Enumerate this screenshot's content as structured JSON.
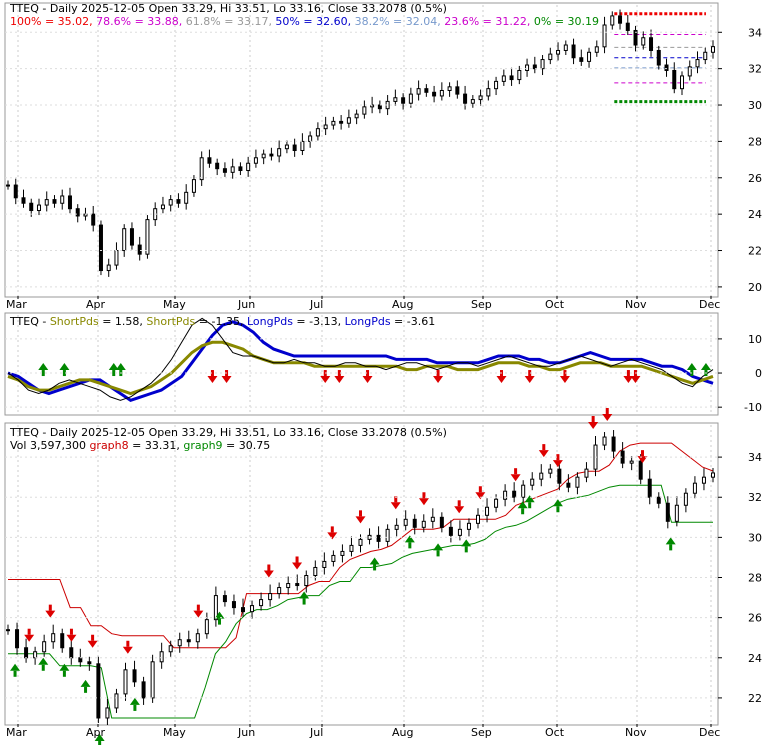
{
  "chart_data": [
    {
      "type": "candlestick",
      "panel": "price-fibonacci",
      "header": {
        "title": "TTEQ - Daily 2025-12-05 Open 33.29, Hi 33.51, Lo 33.16, Close 33.2078 (0.5%)",
        "fib": [
          {
            "text": "100% = 35.02,",
            "color": "#ee0000",
            "value": 35.02
          },
          {
            "text": "78.6% = 33.88,",
            "color": "#cc00cc",
            "value": 33.88
          },
          {
            "text": "61.8% = 33.17,",
            "color": "#999999",
            "value": 33.17
          },
          {
            "text": "50% = 32.60,",
            "color": "#0000cc",
            "value": 32.6
          },
          {
            "text": "38.2% = 32.04,",
            "color": "#7799cc",
            "value": 32.04
          },
          {
            "text": "23.6% = 31.22,",
            "color": "#cc00cc",
            "value": 31.22
          },
          {
            "text": "0% = 30.19",
            "color": "#008800",
            "value": 30.19
          }
        ]
      },
      "ylim": [
        19.5,
        35.5
      ],
      "y_ticks": [
        20,
        22,
        24,
        26,
        28,
        30,
        32,
        34
      ],
      "x_ticks": [
        "Mar",
        "Apr",
        "May",
        "Jun",
        "Jul",
        "Aug",
        "Sep",
        "Oct",
        "Nov",
        "Dec"
      ],
      "closes": [
        25.6,
        24.9,
        24.6,
        24.2,
        24.5,
        24.8,
        24.6,
        25.0,
        24.3,
        23.9,
        24.0,
        23.4,
        20.9,
        21.2,
        22.0,
        23.2,
        22.3,
        21.8,
        23.7,
        24.3,
        24.5,
        24.8,
        24.6,
        25.2,
        25.9,
        27.1,
        26.8,
        26.5,
        26.3,
        26.6,
        26.4,
        26.8,
        27.1,
        27.3,
        27.2,
        27.6,
        27.8,
        27.5,
        28.0,
        28.3,
        28.7,
        28.9,
        29.1,
        29.0,
        29.3,
        29.5,
        29.9,
        30.0,
        29.8,
        30.2,
        30.4,
        30.1,
        30.6,
        30.9,
        30.7,
        30.5,
        30.8,
        31.0,
        30.6,
        30.1,
        30.3,
        30.5,
        30.9,
        31.3,
        31.6,
        31.4,
        31.9,
        32.2,
        32.0,
        32.5,
        32.8,
        33.0,
        33.3,
        32.6,
        32.4,
        32.9,
        33.2,
        34.4,
        34.9,
        34.5,
        34.1,
        33.3,
        33.7,
        33.0,
        32.2,
        31.9,
        30.9,
        31.6,
        32.1,
        32.5,
        32.9,
        33.21
      ],
      "fib_extent": {
        "start_frac": 0.86,
        "end_frac": 0.99
      }
    },
    {
      "type": "line",
      "panel": "oscillator",
      "header": [
        {
          "text": "TTEQ - ",
          "color": "#000000"
        },
        {
          "text": "ShortPds",
          "color": "#888800"
        },
        {
          "text": " = 1.58, ",
          "color": "#000000"
        },
        {
          "text": "ShortPds",
          "color": "#888800"
        },
        {
          "text": " = -1.35, ",
          "color": "#000000"
        },
        {
          "text": "LongPds",
          "color": "#0000cc"
        },
        {
          "text": " = -3.13, ",
          "color": "#000000"
        },
        {
          "text": "LongPds",
          "color": "#0000cc"
        },
        {
          "text": " = -3.61",
          "color": "#000000"
        }
      ],
      "ylim": [
        -12,
        17
      ],
      "y_ticks": [
        -10,
        0,
        10
      ],
      "series": [
        {
          "color": "#0000cc",
          "values": [
            0,
            -1,
            -3,
            -5,
            -6,
            -5,
            -4,
            -3,
            -2,
            -2,
            -4,
            -6,
            -8,
            -7,
            -6,
            -5,
            -3,
            -1,
            3,
            7,
            11,
            14,
            15,
            14,
            12,
            9,
            7,
            6,
            5,
            5,
            5,
            5,
            5,
            5,
            5,
            5,
            5,
            5,
            4,
            4,
            4,
            4,
            3,
            3,
            3,
            3,
            3,
            4,
            5,
            5,
            5,
            4,
            4,
            3,
            3,
            4,
            5,
            6,
            5,
            4,
            4,
            4,
            4,
            3,
            2,
            2,
            1,
            -1,
            -2,
            -3
          ]
        },
        {
          "color": "#888800",
          "values": [
            -1,
            -2,
            -4,
            -5,
            -5,
            -4,
            -3,
            -2,
            -2,
            -3,
            -4,
            -5,
            -6,
            -5,
            -4,
            -2,
            0,
            3,
            6,
            8,
            9,
            9,
            8,
            7,
            5,
            4,
            3,
            3,
            3,
            3,
            2,
            2,
            2,
            2,
            2,
            2,
            2,
            2,
            2,
            1,
            1,
            2,
            2,
            2,
            1,
            1,
            1,
            2,
            3,
            3,
            3,
            2,
            2,
            1,
            1,
            2,
            3,
            3,
            3,
            2,
            2,
            2,
            2,
            1,
            0,
            -1,
            -2,
            -3,
            -2,
            -1
          ]
        },
        {
          "color": "#000000",
          "values": [
            0,
            -2,
            -5,
            -6,
            -5,
            -3,
            -2,
            -3,
            -4,
            -5,
            -7,
            -8,
            -7,
            -5,
            -3,
            0,
            4,
            9,
            14,
            16,
            14,
            10,
            6,
            5,
            5,
            4,
            3,
            3,
            4,
            3,
            3,
            2,
            2,
            3,
            3,
            2,
            2,
            1,
            2,
            3,
            3,
            2,
            1,
            2,
            3,
            3,
            2,
            3,
            4,
            5,
            4,
            3,
            2,
            2,
            3,
            4,
            5,
            4,
            3,
            2,
            3,
            4,
            3,
            2,
            1,
            -1,
            -3,
            -4,
            -1,
            1
          ]
        }
      ],
      "arrows_up_frac": [
        0.05,
        0.08,
        0.15,
        0.16,
        0.97,
        0.99
      ],
      "arrows_down_frac": [
        0.29,
        0.31,
        0.45,
        0.47,
        0.51,
        0.61,
        0.7,
        0.74,
        0.79,
        0.88,
        0.89
      ]
    },
    {
      "type": "candlestick",
      "panel": "price-stops",
      "header": {
        "title": "TTEQ - Daily 2025-12-05 Open 33.29, Hi 33.51, Lo 33.16, Close 33.2078 (0.5%)",
        "vol_text": "Vol 3,597,300",
        "g8_label": "graph8",
        "g8_text": " = 33.31,",
        "g8_color": "#cc0000",
        "g9_label": "graph9",
        "g9_text": " = 30.75",
        "g9_color": "#008800"
      },
      "ylim": [
        20.7,
        35.6
      ],
      "y_ticks": [
        22,
        24,
        26,
        28,
        30,
        32,
        34
      ],
      "x_ticks": [
        "Mar",
        "Apr",
        "May",
        "Jun",
        "Jul",
        "Aug",
        "Sep",
        "Oct",
        "Nov",
        "Dec"
      ],
      "upper_stop": [
        27.9,
        27.9,
        27.9,
        27.9,
        27.9,
        27.9,
        26.5,
        26.5,
        25.6,
        25.6,
        25.2,
        25.1,
        25.1,
        25.1,
        25.1,
        25.1,
        24.5,
        24.5,
        24.5,
        24.5,
        24.5,
        24.5,
        25.0,
        27.2,
        27.2,
        27.2,
        27.2,
        27.2,
        27.2,
        27.6,
        27.8,
        27.8,
        28.5,
        28.9,
        29.1,
        29.3,
        29.4,
        29.6,
        30.0,
        30.4,
        30.4,
        30.4,
        30.5,
        30.9,
        30.9,
        30.9,
        30.9,
        30.9,
        31.1,
        31.6,
        31.8,
        32.0,
        32.2,
        32.4,
        32.9,
        33.2,
        33.3,
        33.3,
        33.6,
        34.3,
        34.6,
        34.7,
        34.7,
        34.7,
        34.7,
        34.3,
        33.9,
        33.5,
        33.31
      ],
      "lower_stop": [
        24.2,
        24.2,
        24.2,
        24.2,
        24.2,
        23.6,
        23.6,
        23.6,
        23.6,
        23.5,
        21.0,
        21.0,
        21.0,
        21.0,
        21.0,
        21.0,
        21.0,
        21.0,
        21.0,
        22.5,
        24.2,
        24.8,
        25.7,
        26.2,
        26.4,
        26.4,
        26.6,
        26.9,
        27.0,
        27.1,
        27.1,
        27.6,
        27.8,
        27.8,
        28.5,
        28.5,
        28.6,
        28.7,
        29.0,
        29.2,
        29.3,
        29.4,
        29.5,
        29.6,
        29.6,
        29.7,
        29.9,
        30.3,
        30.5,
        30.6,
        30.8,
        31.1,
        31.4,
        31.7,
        31.9,
        32.0,
        32.1,
        32.3,
        32.5,
        32.6,
        32.6,
        32.6,
        32.6,
        32.6,
        30.75,
        30.75,
        30.75,
        30.75,
        30.75
      ],
      "closes": [
        25.4,
        24.5,
        24.0,
        24.3,
        24.8,
        25.2,
        24.5,
        24.0,
        23.8,
        23.7,
        21.0,
        21.5,
        22.2,
        23.4,
        22.8,
        22.0,
        23.8,
        24.3,
        24.6,
        24.9,
        24.8,
        25.2,
        25.9,
        27.1,
        26.8,
        26.5,
        26.3,
        26.6,
        26.9,
        27.2,
        27.5,
        27.7,
        27.6,
        28.1,
        28.5,
        28.8,
        29.1,
        29.3,
        29.6,
        29.9,
        30.1,
        29.8,
        30.4,
        30.6,
        30.9,
        30.5,
        30.8,
        31.0,
        30.5,
        30.1,
        30.4,
        30.7,
        31.1,
        31.5,
        31.9,
        32.3,
        32.0,
        32.6,
        32.9,
        33.2,
        33.4,
        32.7,
        32.5,
        33.0,
        33.4,
        34.6,
        35.0,
        34.3,
        33.7,
        33.8,
        32.9,
        32.0,
        31.7,
        30.8,
        31.6,
        32.2,
        32.7,
        33.0,
        33.21
      ],
      "arrows_up_frac": [
        0.01,
        0.05,
        0.08,
        0.11,
        0.13,
        0.18,
        0.3,
        0.42,
        0.52,
        0.57,
        0.61,
        0.65,
        0.73,
        0.74,
        0.78,
        0.94
      ],
      "arrows_down_frac": [
        0.03,
        0.06,
        0.09,
        0.12,
        0.17,
        0.27,
        0.37,
        0.41,
        0.46,
        0.5,
        0.55,
        0.59,
        0.64,
        0.67,
        0.72,
        0.76,
        0.78,
        0.83,
        0.85,
        0.9
      ]
    }
  ]
}
